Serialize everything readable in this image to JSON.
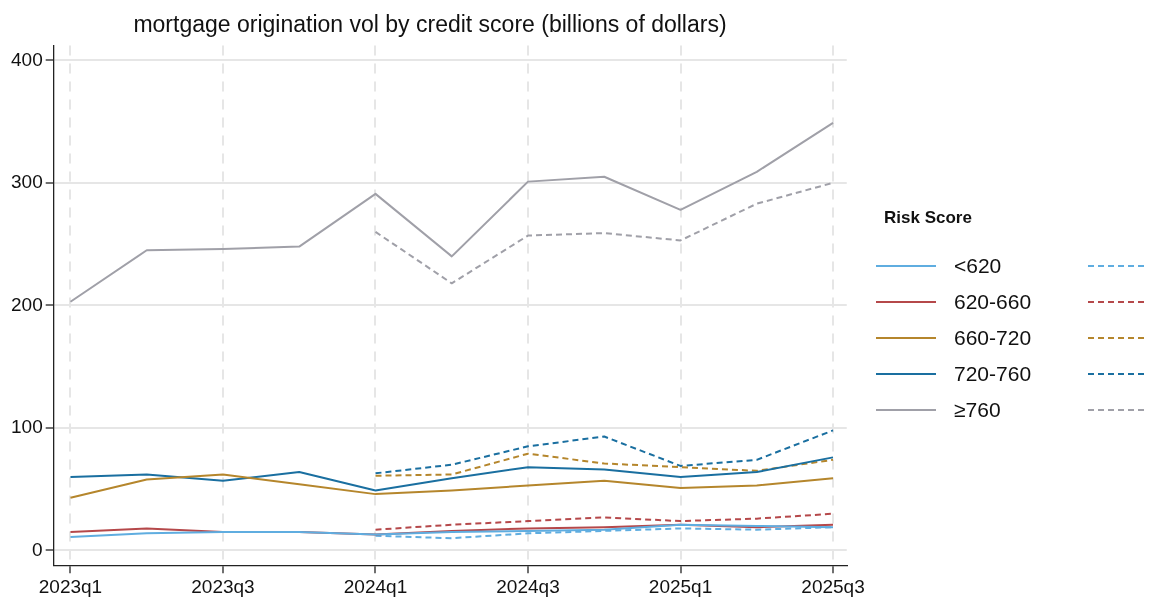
{
  "chart_data": {
    "type": "line",
    "title": "mortgage origination vol by credit score (billions of dollars)",
    "categories": [
      "2023q1",
      null,
      "2023q3",
      null,
      "2024q1",
      null,
      "2024q3",
      null,
      "2025q1",
      null,
      "2025q3"
    ],
    "series": [
      {
        "name": "<620",
        "color": "#5fade0",
        "line_style": "solid",
        "values": [
          11,
          14,
          15,
          15,
          13,
          15,
          16,
          17,
          21,
          20,
          19
        ]
      },
      {
        "name": "620-660",
        "color": "#b5484a",
        "line_style": "solid",
        "values": [
          15,
          18,
          15,
          15,
          13,
          16,
          18,
          19,
          21,
          19,
          21
        ]
      },
      {
        "name": "660-720",
        "color": "#b5862c",
        "line_style": "solid",
        "values": [
          43,
          58,
          62,
          54,
          46,
          49,
          53,
          57,
          51,
          53,
          59
        ]
      },
      {
        "name": "720-760",
        "color": "#1a6fa0",
        "line_style": "solid",
        "values": [
          60,
          62,
          57,
          64,
          49,
          59,
          68,
          66,
          60,
          64,
          76
        ]
      },
      {
        "name": "≥760",
        "color": "#a0a0a8",
        "line_style": "solid",
        "values": [
          203,
          245,
          246,
          248,
          291,
          240,
          301,
          305,
          278,
          309,
          349
        ]
      },
      {
        "color": "#5fade0",
        "line_style": "dashed",
        "values": [
          null,
          null,
          null,
          null,
          12,
          10,
          14,
          16,
          18,
          17,
          19
        ]
      },
      {
        "color": "#b5484a",
        "line_style": "dashed",
        "values": [
          null,
          null,
          null,
          null,
          17,
          21,
          24,
          27,
          24,
          26,
          30
        ]
      },
      {
        "color": "#b5862c",
        "line_style": "dashed",
        "values": [
          null,
          null,
          null,
          null,
          61,
          62,
          79,
          71,
          68,
          65,
          74
        ]
      },
      {
        "color": "#1a6fa0",
        "line_style": "dashed",
        "values": [
          null,
          null,
          null,
          null,
          63,
          70,
          85,
          93,
          69,
          74,
          98
        ]
      },
      {
        "color": "#a0a0a8",
        "line_style": "dashed",
        "values": [
          null,
          null,
          null,
          null,
          260,
          218,
          257,
          259,
          253,
          283,
          300
        ]
      }
    ],
    "ylim": [
      -12,
      412
    ],
    "yticks": [
      0,
      100,
      200,
      300,
      400
    ],
    "grid": true,
    "legend": "right",
    "legend_title": "Risk Score",
    "marker": "none"
  }
}
